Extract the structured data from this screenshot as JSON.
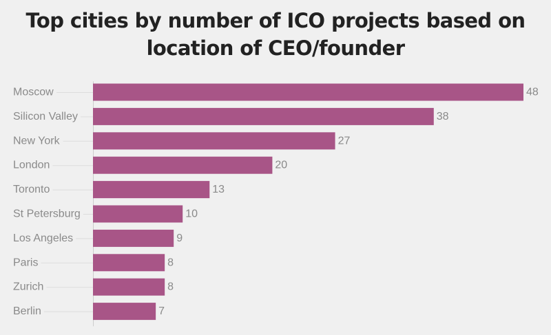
{
  "chart_data": {
    "type": "bar",
    "orientation": "horizontal",
    "title_lines": [
      "Top cities by number of ICO projects based on",
      "location of CEO/founder"
    ],
    "categories": [
      "Moscow",
      "Silicon Valley",
      "New York",
      "London",
      "Toronto",
      "St Petersburg",
      "Los Angeles",
      "Paris",
      "Zurich",
      "Berlin"
    ],
    "values": [
      48,
      38,
      27,
      20,
      13,
      10,
      9,
      8,
      8,
      7
    ],
    "value_labels": [
      "48",
      "38",
      "27",
      "20",
      "13",
      "10",
      "9",
      "8",
      "8",
      "7"
    ],
    "xlim": [
      0,
      48
    ],
    "grid": false,
    "bar_color": "#a85587",
    "label_color": "#8a8a8a",
    "title_color": "#222222",
    "background": "#f0f0f0"
  }
}
